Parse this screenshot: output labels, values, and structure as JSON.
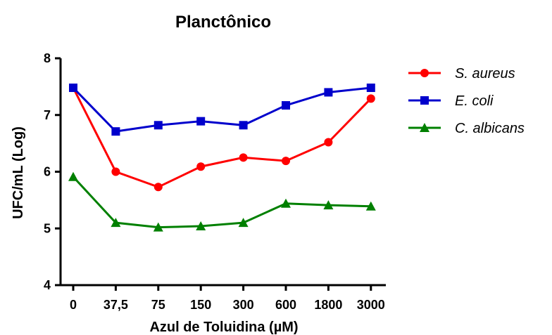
{
  "chart_data": {
    "type": "line",
    "title": "Planctônico",
    "xlabel": "Azul de Toluidina (µM)",
    "ylabel": "UFC/mL (Log)",
    "categories": [
      "0",
      "37,5",
      "75",
      "150",
      "300",
      "600",
      "1800",
      "3000"
    ],
    "yticks": [
      "4",
      "5",
      "6",
      "7",
      "8"
    ],
    "ylim": [
      4,
      8
    ],
    "grid": false,
    "legend_position": "right",
    "series": [
      {
        "name": "S. aureus",
        "color": "#ff0000",
        "marker": "circle",
        "values": [
          7.48,
          6.0,
          5.73,
          6.09,
          6.25,
          6.19,
          6.52,
          7.29
        ]
      },
      {
        "name": "E. coli",
        "color": "#0000cc",
        "marker": "square",
        "values": [
          7.48,
          6.71,
          6.82,
          6.89,
          6.82,
          7.17,
          7.4,
          7.48
        ]
      },
      {
        "name": "C. albicans",
        "color": "#008000",
        "marker": "triangle",
        "values": [
          5.91,
          5.1,
          5.02,
          5.04,
          5.1,
          5.44,
          5.41,
          5.39
        ]
      }
    ]
  }
}
